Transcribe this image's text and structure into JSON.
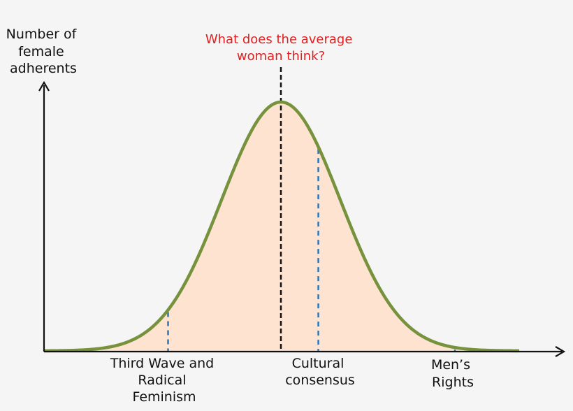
{
  "colors": {
    "background": "#f5f5f5",
    "curve_stroke": "#76923c",
    "curve_fill": "#fde3d0",
    "axis": "#111111",
    "mean_line": "#111111",
    "marker_lines": "#2e75b6",
    "annotation_text": "#e02020",
    "label_text": "#111111"
  },
  "y_axis_label": [
    "Number of",
    "female",
    "adherents"
  ],
  "annotation": [
    "What does  the average",
    "woman think?"
  ],
  "categories": {
    "left": [
      "Third Wave and",
      "Radical",
      "Feminism"
    ],
    "center": [
      "Cultural",
      "consensus"
    ],
    "right": [
      "Men’s",
      "Rights"
    ]
  },
  "distribution": {
    "shape": "normal",
    "mean": 0,
    "std_dev": 1,
    "markers_in_std_dev": {
      "left": -1.9,
      "center_right": 0.63,
      "right": 2.93
    }
  }
}
